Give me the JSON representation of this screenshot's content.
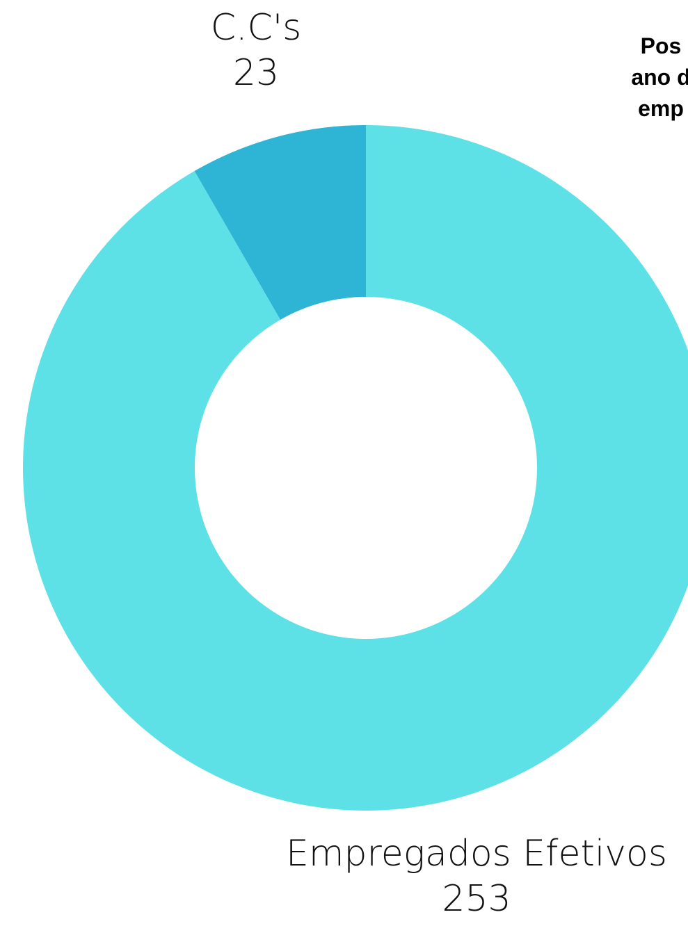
{
  "chart_data": {
    "type": "pie",
    "variant": "donut",
    "title_lines": [
      "Pos",
      "ano d",
      "emp"
    ],
    "slices": [
      {
        "label": "C.C's",
        "value": 23,
        "color": "#2EB4D4"
      },
      {
        "label": "Empregados Efetivos",
        "value": 253,
        "color": "#5EE1E6"
      }
    ],
    "legend": "none"
  }
}
